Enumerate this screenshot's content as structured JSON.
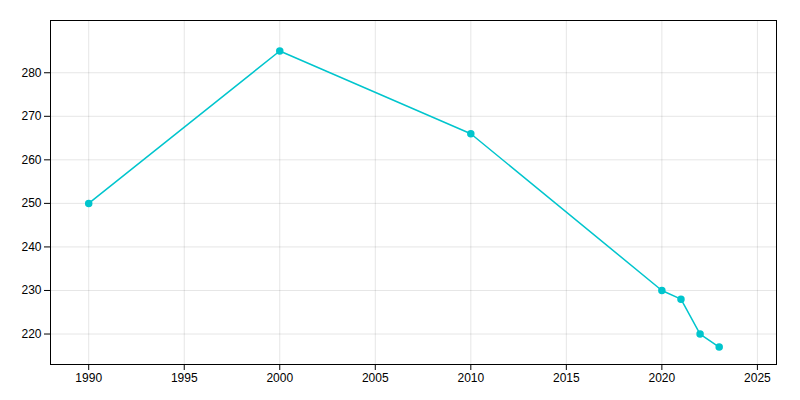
{
  "chart_data": {
    "type": "line",
    "x": [
      1990,
      2000,
      2010,
      2020,
      2021,
      2022,
      2023
    ],
    "values": [
      250,
      285,
      266,
      230,
      228,
      220,
      217
    ],
    "color": "#00C5CD",
    "marker": "circle",
    "grid": true,
    "xlim": [
      1988,
      2026
    ],
    "ylim": [
      213,
      292
    ],
    "xticks": [
      1990,
      1995,
      2000,
      2005,
      2010,
      2015,
      2020,
      2025
    ],
    "yticks": [
      220,
      230,
      240,
      250,
      260,
      270,
      280
    ]
  }
}
